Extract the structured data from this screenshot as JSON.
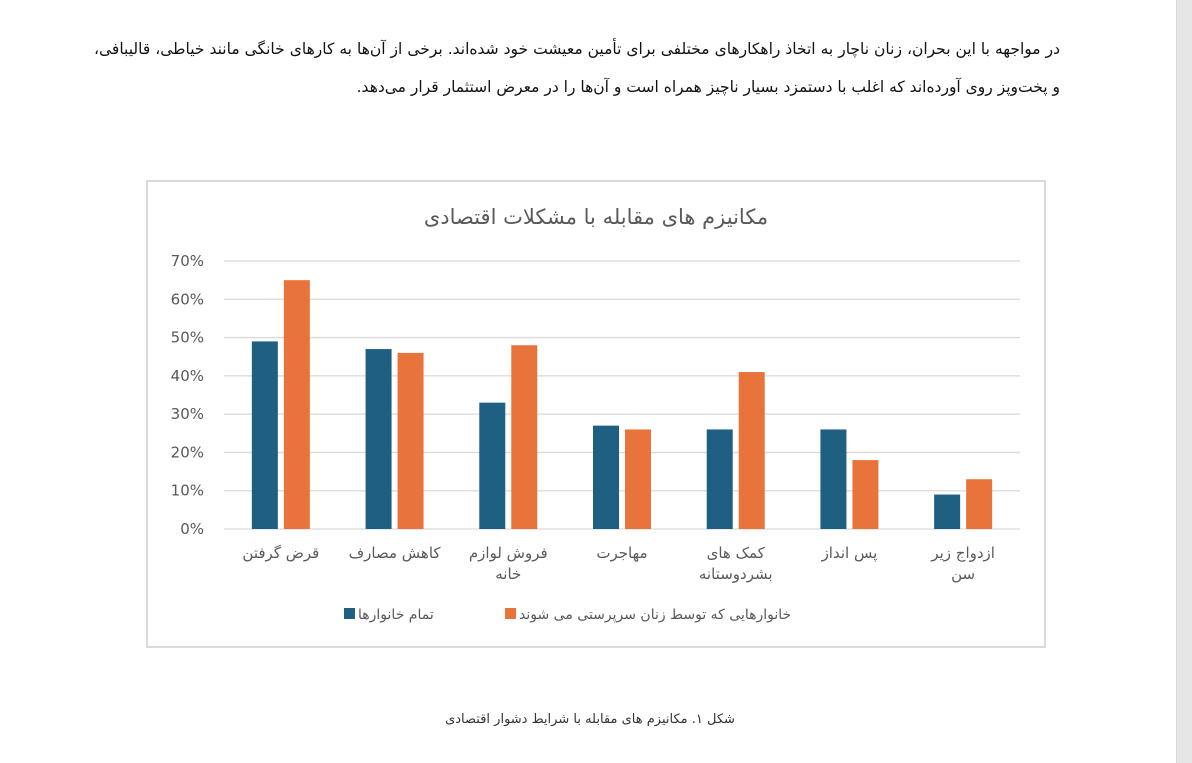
{
  "document": {
    "paragraph": "در مواجهه با این بحران، زنان ناچار به اتخاذ راهکارهای مختلفی برای تأمین معیشت خود شده‌اند. برخی از آن‌ها به کارهای خانگی مانند خیاطی، قالیبافی، و پخت‌وپز روی آورده‌اند که اغلب با دستمزد بسیار ناچیز همراه است و آن‌ها را در معرض استثمار قرار می‌دهد.",
    "caption": "شکل ۱. مکانیزم های مقابله با شرایط دشوار اقتصادی"
  },
  "chart_data": {
    "type": "bar",
    "title": "مکانیزم های مقابله با مشکلات اقتصادی",
    "categories": [
      "قرض گرفتن",
      "کاهش مصارف",
      "فروش لوازم خانه",
      "مهاجرت",
      "کمک های بشردوستانه",
      "پس انداز",
      "ازدواج زیر سن"
    ],
    "category_label_lines": [
      [
        "قرض گرفتن"
      ],
      [
        "کاهش مصارف"
      ],
      [
        "فروش لوازم",
        "خانه"
      ],
      [
        "مهاجرت"
      ],
      [
        "کمک های",
        "بشردوستانه"
      ],
      [
        "پس انداز"
      ],
      [
        "ازدواج زیر",
        "سن"
      ]
    ],
    "series": [
      {
        "name": "تمام خانوارها",
        "color": "#1f5f82",
        "values": [
          49,
          47,
          33,
          27,
          26,
          26,
          9
        ]
      },
      {
        "name": "خانوارهایی که توسط زنان سرپرستی می شوند",
        "color": "#e8743b",
        "values": [
          65,
          46,
          48,
          26,
          41,
          18,
          13
        ]
      }
    ],
    "ylim": [
      0,
      70
    ],
    "yticks": [
      "0%",
      "10%",
      "20%",
      "30%",
      "40%",
      "50%",
      "60%",
      "70%"
    ],
    "y_unit": "%",
    "grid": true,
    "legend_position": "bottom"
  }
}
